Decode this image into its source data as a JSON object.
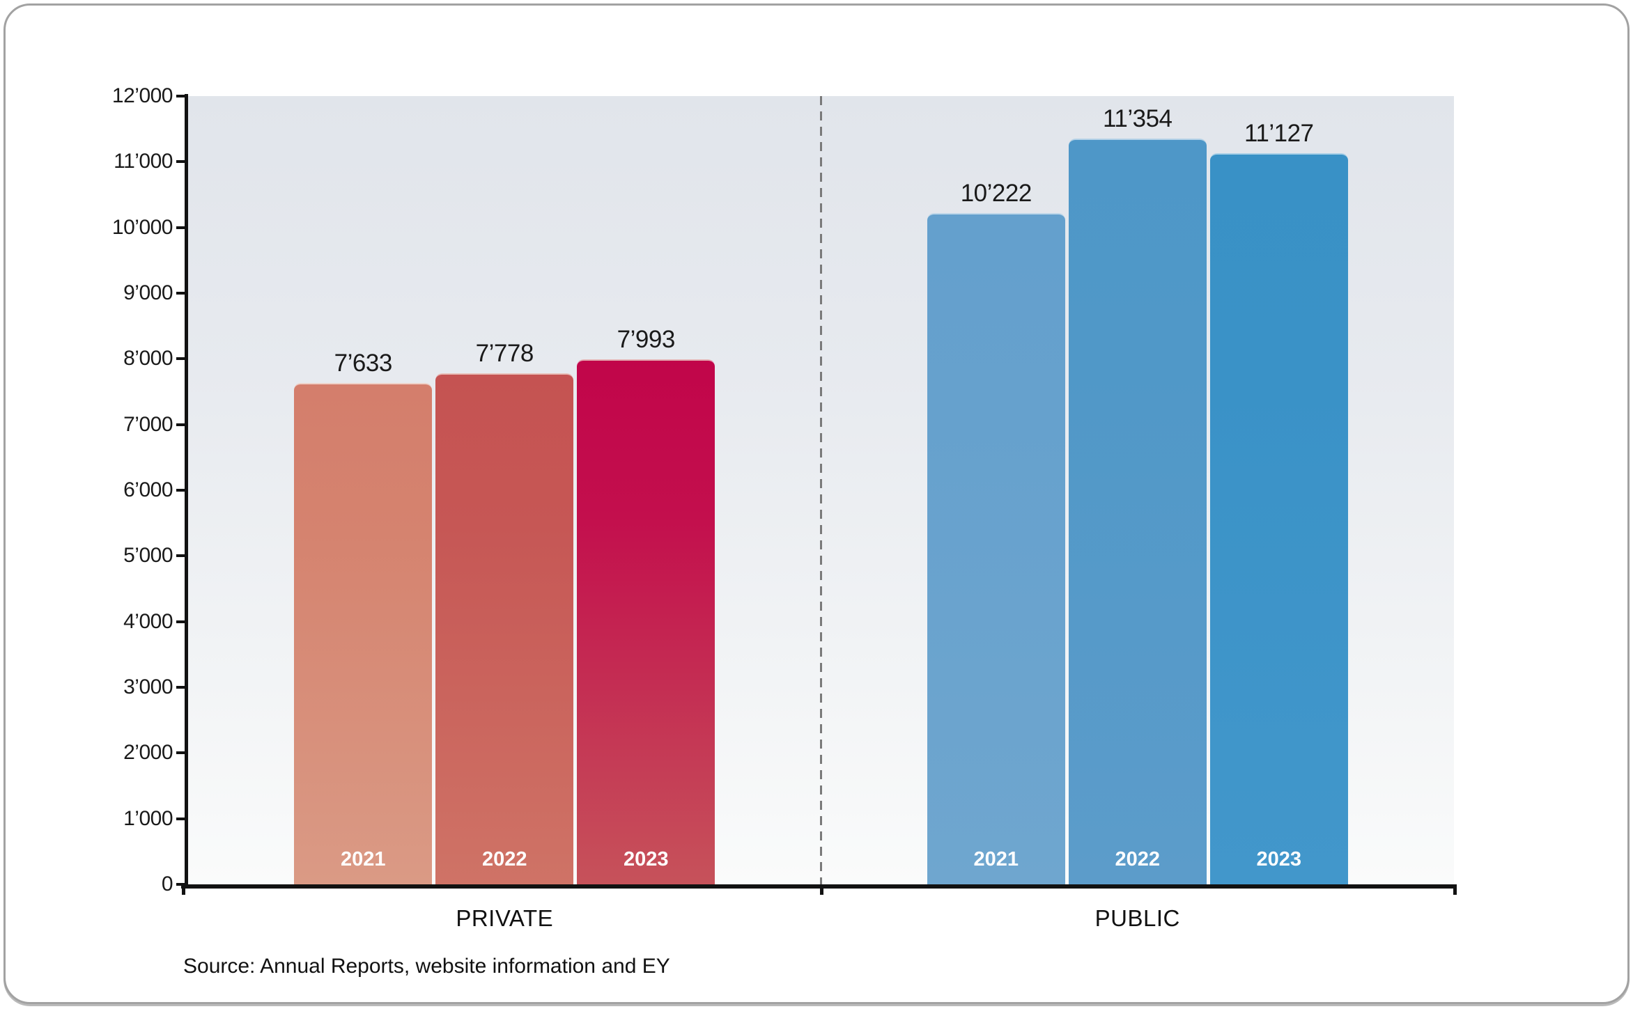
{
  "source": {
    "text": "Source: Annual Reports, website information and EY"
  },
  "chart_data": {
    "type": "bar",
    "title": "",
    "xlabel": "",
    "ylabel": "",
    "ylim": [
      0,
      12000
    ],
    "grid": false,
    "legend": "none",
    "categories": [
      "2021",
      "2022",
      "2023"
    ],
    "ytick_labels": [
      "0",
      "1’000",
      "2’000",
      "3’000",
      "4’000",
      "5’000",
      "6’000",
      "7’000",
      "8’000",
      "9’000",
      "10’000",
      "11’000",
      "12’000"
    ],
    "separator": "dashed vertical line between groups",
    "groups": [
      {
        "name": "PRIVATE",
        "values": [
          7633,
          7778,
          7993
        ],
        "value_labels": [
          "7’633",
          "7’778",
          "7’993"
        ],
        "bar_gradients": [
          {
            "top": "#D47E6C",
            "mid": "#D5836F",
            "bottom": "#DA9A85"
          },
          {
            "top": "#C55352",
            "mid": "#C65755",
            "bottom": "#CF7366"
          },
          {
            "top": "#C1054A",
            "mid": "#C30F4D",
            "bottom": "#C6525A"
          }
        ]
      },
      {
        "name": "PUBLIC",
        "values": [
          10222,
          11354,
          11127
        ],
        "value_labels": [
          "10’222",
          "11’354",
          "11’127"
        ],
        "bar_gradients": [
          {
            "top": "#64A0CD",
            "mid": "#66A1CD",
            "bottom": "#6FA6CF"
          },
          {
            "top": "#4E97C8",
            "mid": "#5098C8",
            "bottom": "#5C9CCA"
          },
          {
            "top": "#3991C6",
            "mid": "#3A92C7",
            "bottom": "#4297CB"
          }
        ]
      }
    ],
    "colors": {
      "axis": "#121212",
      "plot_bg_top": "#E1E5EB",
      "plot_bg_bottom": "#FAFBFB",
      "divider": "#7a7a7a",
      "value_label_text": "#1a1a1a",
      "year_label_text": "#ffffff"
    }
  }
}
